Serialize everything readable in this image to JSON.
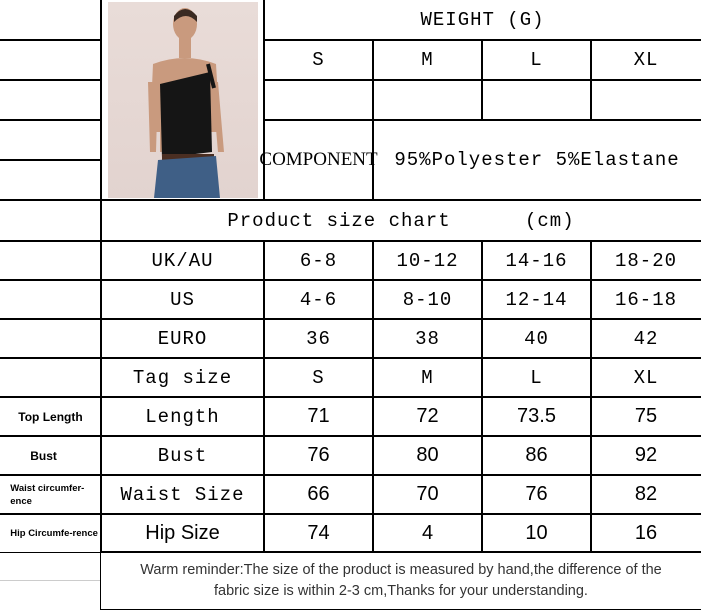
{
  "header": {
    "weight_title": "WEIGHT (G)",
    "sizes": [
      "S",
      "M",
      "L",
      "XL"
    ],
    "component_label": "COMPONENT",
    "component_value": "95%Polyester 5%Elastane"
  },
  "chart_title": "Product size chart      (cm)",
  "rows": [
    {
      "side": "",
      "label": "UK/AU",
      "values": [
        "6-8",
        "10-12",
        "14-16",
        "18-20"
      ]
    },
    {
      "side": "",
      "label": "US",
      "values": [
        "4-6",
        "8-10",
        "12-14",
        "16-18"
      ]
    },
    {
      "side": "",
      "label": "EURO",
      "values": [
        "36",
        "38",
        "40",
        "42"
      ]
    },
    {
      "side": "",
      "label": "Tag size",
      "values": [
        "S",
        "M",
        "L",
        "XL"
      ]
    },
    {
      "side": "Top Length",
      "label": "Length",
      "values": [
        "71",
        "72",
        "73.5",
        "75"
      ]
    },
    {
      "side": "Bust",
      "label": "Bust",
      "values": [
        "76",
        "80",
        "86",
        "92"
      ]
    },
    {
      "side": "Waist circumfer-ence",
      "label": "Waist Size",
      "values": [
        "66",
        "70",
        "76",
        "82"
      ]
    },
    {
      "side": "Hip Circumfe-rence",
      "label": "Hip Size",
      "values": [
        "74",
        "4",
        "10",
        "16"
      ]
    }
  ],
  "footer": {
    "line1": "Warm reminder:The size of the product is measured by hand,the difference of the",
    "line2": "fabric size is within 2-3 cm,Thanks for your understanding."
  }
}
